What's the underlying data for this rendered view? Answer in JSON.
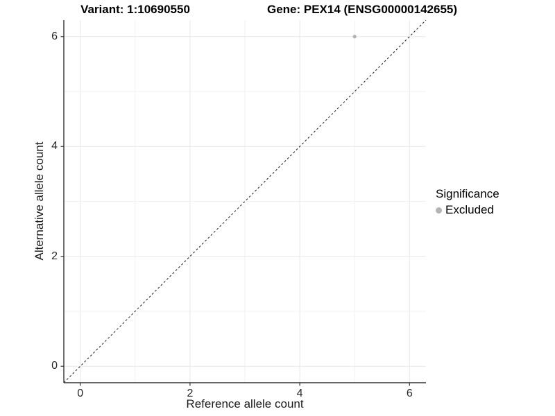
{
  "titles": {
    "variant": "Variant: 1:10690550",
    "gene": "Gene: PEX14 (ENSG00000142655)"
  },
  "chart_data": {
    "type": "scatter",
    "title_left": "Variant: 1:10690550",
    "title_right": "Gene: PEX14 (ENSG00000142655)",
    "xlabel": "Reference allele count",
    "ylabel": "Alternative allele count",
    "xlim": [
      -0.3,
      6.3
    ],
    "ylim": [
      -0.3,
      6.3
    ],
    "xticks": [
      0,
      2,
      4,
      6
    ],
    "yticks": [
      0,
      2,
      4,
      6
    ],
    "xticks_minor": [
      1,
      3,
      5
    ],
    "yticks_minor": [
      1,
      3,
      5
    ],
    "grid": true,
    "points": [
      {
        "x": 5,
        "y": 6,
        "series": "Excluded"
      }
    ],
    "identity_line": {
      "type": "dashed",
      "x1": -0.3,
      "y1": -0.3,
      "x2": 6.3,
      "y2": 6.3
    },
    "legend": {
      "title": "Significance",
      "position": "right",
      "entries": [
        {
          "label": "Excluded",
          "color": "#b4b4b4"
        }
      ]
    },
    "colors": {
      "point": "#b4b4b4",
      "grid_major": "#e7e7e7",
      "grid_minor": "#f2f2f2",
      "axis_line": "#333333",
      "tick_mark": "#333333",
      "dashed_line": "#1a1a1a",
      "background": "#ffffff"
    }
  }
}
